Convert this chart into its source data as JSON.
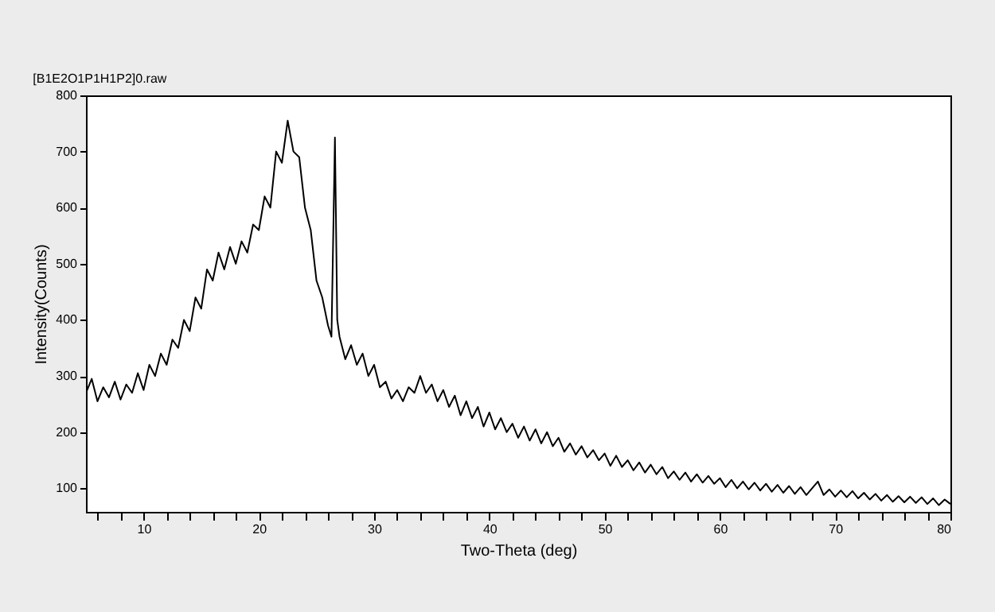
{
  "chart_data": {
    "type": "line",
    "title": "[B1E2O1P1H1P2]0.raw",
    "xlabel": "Two-Theta (deg)",
    "ylabel": "Intensity(Counts)",
    "xlim": [
      5,
      80
    ],
    "ylim": [
      58,
      800
    ],
    "xticks": [
      {
        "value": 6,
        "label": null
      },
      {
        "value": 8,
        "label": null
      },
      10,
      {
        "value": 12,
        "label": null
      },
      {
        "value": 14,
        "label": null
      },
      {
        "value": 16,
        "label": null
      },
      {
        "value": 18,
        "label": null
      },
      20,
      {
        "value": 22,
        "label": null
      },
      {
        "value": 24,
        "label": null
      },
      {
        "value": 26,
        "label": null
      },
      {
        "value": 28,
        "label": null
      },
      30,
      {
        "value": 32,
        "label": null
      },
      {
        "value": 34,
        "label": null
      },
      {
        "value": 36,
        "label": null
      },
      {
        "value": 38,
        "label": null
      },
      40,
      {
        "value": 42,
        "label": null
      },
      {
        "value": 44,
        "label": null
      },
      {
        "value": 46,
        "label": null
      },
      {
        "value": 48,
        "label": null
      },
      50,
      {
        "value": 52,
        "label": null
      },
      {
        "value": 54,
        "label": null
      },
      {
        "value": 56,
        "label": null
      },
      {
        "value": 58,
        "label": null
      },
      60,
      {
        "value": 62,
        "label": null
      },
      {
        "value": 64,
        "label": null
      },
      {
        "value": 66,
        "label": null
      },
      {
        "value": 68,
        "label": null
      },
      70,
      {
        "value": 72,
        "label": null
      },
      {
        "value": 74,
        "label": null
      },
      {
        "value": 76,
        "label": null
      },
      {
        "value": 78,
        "label": null
      },
      80
    ],
    "yticks": [
      100,
      200,
      300,
      400,
      500,
      600,
      700,
      800
    ],
    "grid": false,
    "marker": "none",
    "line_style": "solid",
    "x": [
      5,
      5.5,
      6,
      6.5,
      7,
      7.5,
      8,
      8.5,
      9,
      9.5,
      10,
      10.5,
      11,
      11.5,
      12,
      12.5,
      13,
      13.5,
      14,
      14.5,
      15,
      15.5,
      16,
      16.5,
      17,
      17.5,
      18,
      18.5,
      19,
      19.5,
      20,
      20.5,
      21,
      21.5,
      22,
      22.5,
      23,
      23.5,
      24,
      24.5,
      25,
      25.5,
      26,
      26.3,
      26.6,
      26.8,
      27,
      27.5,
      28,
      28.5,
      29,
      29.5,
      30,
      30.5,
      31,
      31.5,
      32,
      32.5,
      33,
      33.5,
      34,
      34.5,
      35,
      35.5,
      36,
      36.5,
      37,
      37.5,
      38,
      38.5,
      39,
      39.5,
      40,
      40.5,
      41,
      41.5,
      42,
      42.5,
      43,
      43.5,
      44,
      44.5,
      45,
      45.5,
      46,
      46.5,
      47,
      47.5,
      48,
      48.5,
      49,
      49.5,
      50,
      50.5,
      51,
      51.5,
      52,
      52.5,
      53,
      53.5,
      54,
      54.5,
      55,
      55.5,
      56,
      56.5,
      57,
      57.5,
      58,
      58.5,
      59,
      59.5,
      60,
      60.5,
      61,
      61.5,
      62,
      62.5,
      63,
      63.5,
      64,
      64.5,
      65,
      65.5,
      66,
      66.5,
      67,
      67.5,
      68,
      68.5,
      69,
      69.5,
      70,
      70.5,
      71,
      71.5,
      72,
      72.5,
      73,
      73.5,
      74,
      74.5,
      75,
      75.5,
      76,
      76.5,
      77,
      77.5,
      78,
      78.5,
      79,
      79.5,
      80
    ],
    "series": [
      {
        "color": "#000000",
        "values": [
          270,
          295,
          255,
          280,
          262,
          290,
          258,
          285,
          270,
          305,
          275,
          320,
          300,
          340,
          320,
          365,
          350,
          400,
          380,
          440,
          420,
          490,
          470,
          520,
          490,
          530,
          500,
          540,
          520,
          570,
          560,
          620,
          600,
          700,
          680,
          755,
          700,
          690,
          600,
          560,
          470,
          440,
          390,
          370,
          725,
          400,
          370,
          330,
          355,
          320,
          340,
          300,
          320,
          280,
          290,
          260,
          275,
          255,
          280,
          270,
          300,
          270,
          285,
          255,
          275,
          245,
          265,
          230,
          255,
          225,
          245,
          210,
          235,
          205,
          225,
          200,
          215,
          190,
          210,
          185,
          205,
          180,
          200,
          175,
          190,
          165,
          180,
          160,
          175,
          155,
          168,
          150,
          162,
          140,
          158,
          138,
          150,
          132,
          146,
          128,
          142,
          125,
          138,
          118,
          130,
          115,
          128,
          112,
          125,
          110,
          122,
          108,
          118,
          102,
          115,
          100,
          112,
          98,
          110,
          96,
          108,
          94,
          106,
          92,
          104,
          90,
          102,
          88,
          100,
          112,
          88,
          98,
          85,
          96,
          84,
          95,
          82,
          92,
          80,
          90,
          78,
          88,
          76,
          86,
          75,
          85,
          74,
          84,
          72,
          82,
          70,
          80,
          72
        ]
      }
    ]
  }
}
